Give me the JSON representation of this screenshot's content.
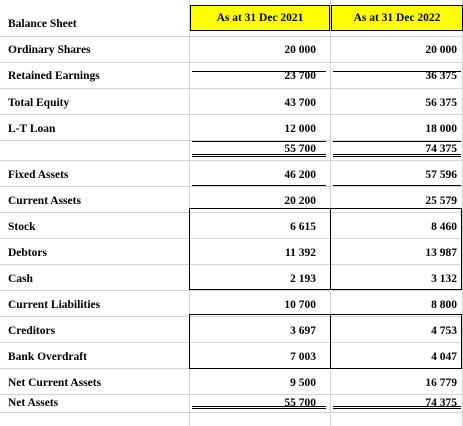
{
  "sheet": {
    "title": "Balance Sheet",
    "headers": [
      "As at 31 Dec 2021",
      "As at 31 Dec 2022"
    ],
    "rows": [
      {
        "label": "Ordinary Shares",
        "v2021": "20 000",
        "v2022": "20 000"
      },
      {
        "label": "Retained Earnings",
        "v2021": "23 700",
        "v2022": "36 375"
      },
      {
        "label": "Total Equity",
        "v2021": "43 700",
        "v2022": "56 375"
      },
      {
        "label": "L-T Loan",
        "v2021": "12 000",
        "v2022": "18 000"
      },
      {
        "label": "",
        "v2021": "55 700",
        "v2022": "74 375"
      },
      {
        "label": "",
        "v2021": "",
        "v2022": ""
      },
      {
        "label": "Fixed Assets",
        "v2021": "46 200",
        "v2022": "57 596"
      },
      {
        "label": "Current Assets",
        "v2021": "20 200",
        "v2022": "25 579"
      },
      {
        "label": "Stock",
        "v2021": "6 615",
        "v2022": "8 460"
      },
      {
        "label": "Debtors",
        "v2021": "11 392",
        "v2022": "13 987"
      },
      {
        "label": "Cash",
        "v2021": "2 193",
        "v2022": "3 132"
      },
      {
        "label": "Current Liabilities",
        "v2021": "10 700",
        "v2022": "8 800"
      },
      {
        "label": "Creditors",
        "v2021": "3 697",
        "v2022": "4 753"
      },
      {
        "label": "Bank Overdraft",
        "v2021": "7 003",
        "v2022": "4 047"
      },
      {
        "label": "Net Current Assets",
        "v2021": "9 500",
        "v2022": "16 779"
      },
      {
        "label": "Net Assets",
        "v2021": "55 700",
        "v2022": "74 375"
      }
    ]
  }
}
